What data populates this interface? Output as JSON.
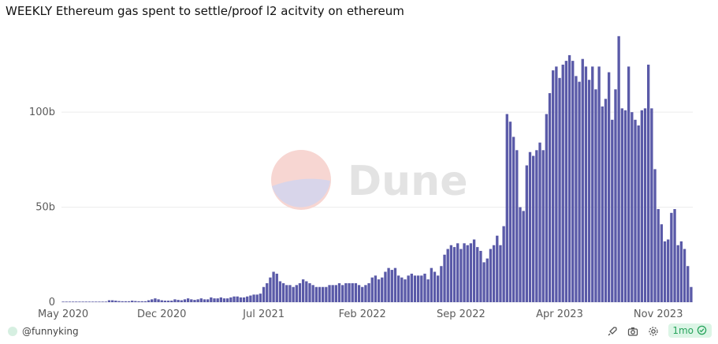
{
  "title": "WEEKLY Ethereum gas spent to settle/proof l2 acitvity on ethereum",
  "watermark": "Dune",
  "footer": {
    "author": "@funnyking",
    "freshness": "1mo",
    "icons": [
      "rocket-icon",
      "camera-icon",
      "gear-icon",
      "check-circle-icon"
    ]
  },
  "colors": {
    "bar": "#5a5aa8",
    "grid": "#ececec",
    "badge_text": "#28a45c"
  },
  "chart_data": {
    "type": "bar",
    "title": "WEEKLY Ethereum gas spent to settle/proof l2 acitvity on ethereum",
    "xlabel": "",
    "ylabel": "",
    "ylim": [
      0,
      142
    ],
    "yunit": "b",
    "y_ticks": [
      0,
      50,
      100
    ],
    "y_tick_labels": [
      "0",
      "50b",
      "100b"
    ],
    "x_tick_labels": [
      "May 2020",
      "Dec 2020",
      "Jul 2021",
      "Feb 2022",
      "Sep 2022",
      "Apr 2023",
      "Nov 2023"
    ],
    "x_tick_index": [
      0,
      30,
      61,
      91,
      121,
      151,
      181
    ],
    "grid": true,
    "legend": "none",
    "series": [
      {
        "values": [
          0.3,
          0.3,
          0.3,
          0.3,
          0.3,
          0.3,
          0.3,
          0.3,
          0.3,
          0.3,
          0.3,
          0.3,
          0.3,
          0.3,
          1,
          1,
          0.8,
          0.6,
          0.5,
          0.5,
          0.5,
          0.8,
          0.6,
          0.5,
          0.5,
          0.5,
          1,
          1.5,
          2,
          1.5,
          1,
          0.8,
          0.8,
          0.8,
          1.5,
          1.2,
          1,
          1.5,
          2,
          1.5,
          1.2,
          1.5,
          2,
          1.5,
          1.5,
          2.5,
          2,
          2,
          2.5,
          2,
          2,
          2.5,
          3,
          3,
          2.5,
          2.5,
          3,
          3.5,
          4,
          4,
          4.5,
          8,
          10,
          13,
          16,
          15,
          11,
          10,
          9,
          9,
          8,
          9,
          10,
          12,
          11,
          10,
          9,
          8,
          8,
          8,
          8,
          9,
          9,
          9,
          10,
          9,
          10,
          10,
          10,
          10,
          9,
          8,
          9,
          10,
          13,
          14,
          12,
          13,
          16,
          18,
          17,
          18,
          14,
          13,
          12,
          14,
          15,
          14,
          14,
          14,
          15,
          12,
          18,
          16,
          14,
          19,
          25,
          28,
          30,
          29,
          31,
          28,
          31,
          30,
          31,
          33,
          29,
          27,
          21,
          23,
          28,
          30,
          35,
          30,
          40,
          99,
          95,
          87,
          80,
          50,
          48,
          72,
          79,
          77,
          80,
          84,
          80,
          99,
          110,
          122,
          124,
          118,
          125,
          127,
          130,
          127,
          119,
          116,
          128,
          124,
          117,
          124,
          112,
          124,
          103,
          107,
          121,
          96,
          112,
          140,
          102,
          101,
          124,
          100,
          96,
          93,
          101,
          102,
          125,
          102,
          70,
          49,
          41,
          32,
          33,
          47,
          49,
          30,
          32,
          28,
          19,
          8
        ]
      }
    ]
  }
}
